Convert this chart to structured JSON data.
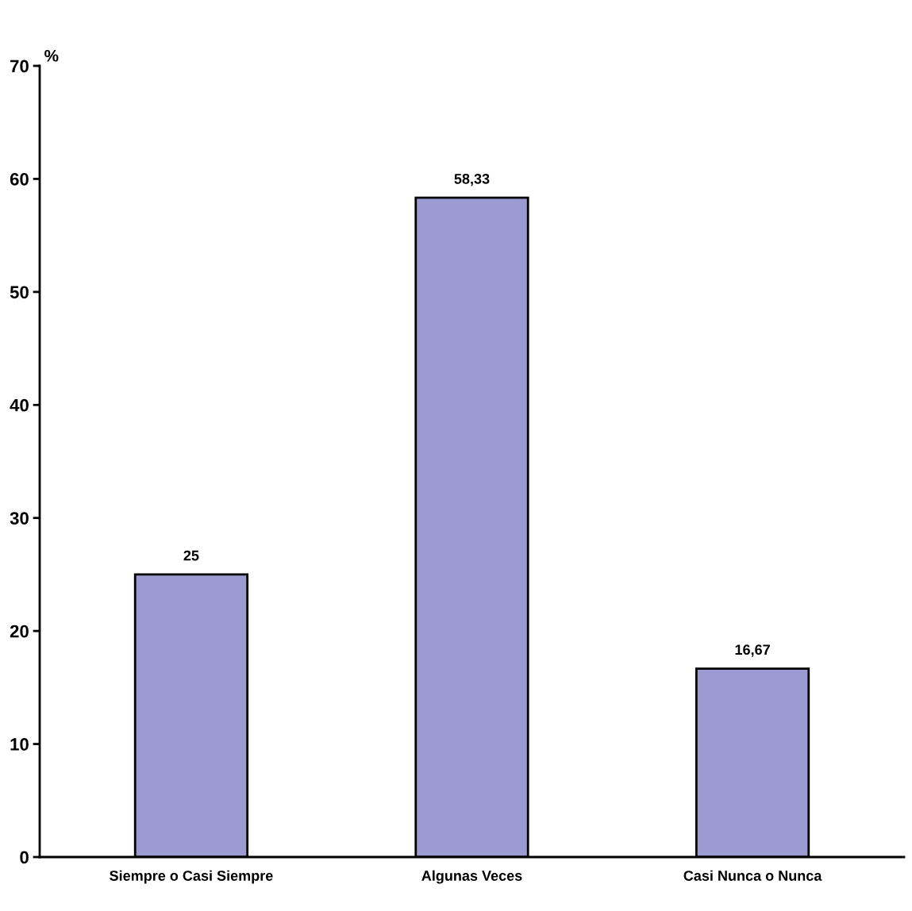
{
  "chart_data": {
    "type": "bar",
    "ylabel": "%",
    "categories": [
      "Siempre o Casi Siempre",
      "Algunas Veces",
      "Casi Nunca o Nunca"
    ],
    "values": [
      25,
      58.33,
      16.67
    ],
    "value_labels": [
      "25",
      "58,33",
      "16,67"
    ],
    "color": "#9b9bd2",
    "ylim": [
      0,
      70
    ],
    "yticks": [
      0,
      10,
      20,
      30,
      40,
      50,
      60,
      70
    ],
    "grid": false,
    "legend": false
  }
}
